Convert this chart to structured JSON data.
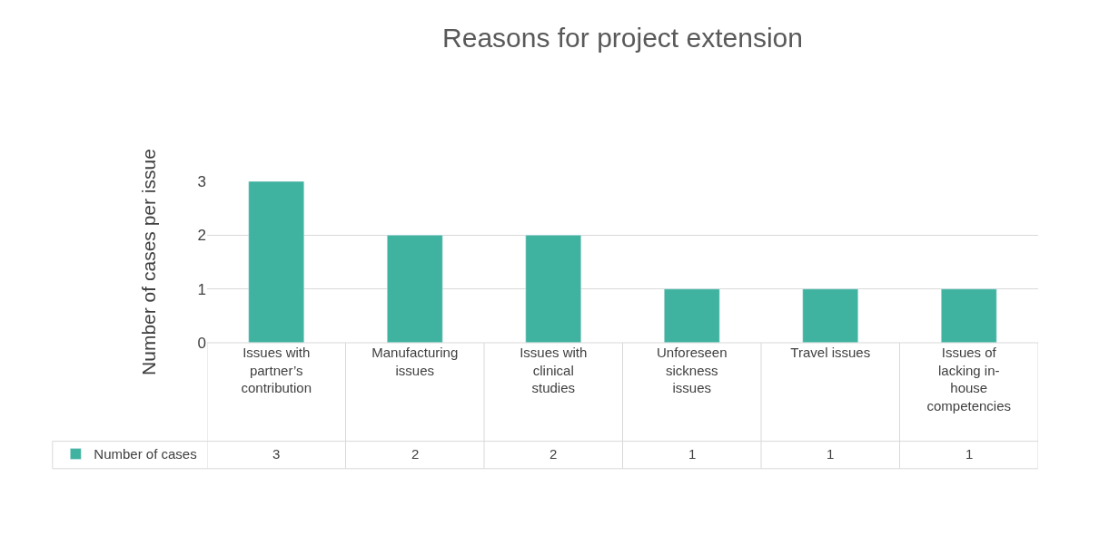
{
  "chart_data": {
    "type": "bar",
    "title": "Reasons for project extension",
    "ylabel": "Number of cases per issue",
    "categories": [
      "Issues with partner’s contribution",
      "Manufacturing issues",
      "Issues with clinical studies",
      "Unforeseen sickness issues",
      "Travel issues",
      "Issues of lacking in-house competencies"
    ],
    "series": [
      {
        "name": "Number of cases",
        "color": "#3fb2a0",
        "values": [
          3,
          2,
          2,
          1,
          1,
          1
        ]
      }
    ],
    "ylim": [
      0,
      3
    ],
    "yticks": [
      0,
      1,
      2,
      3
    ],
    "grid": "y",
    "legend": "bottom left",
    "data_labels": true
  }
}
